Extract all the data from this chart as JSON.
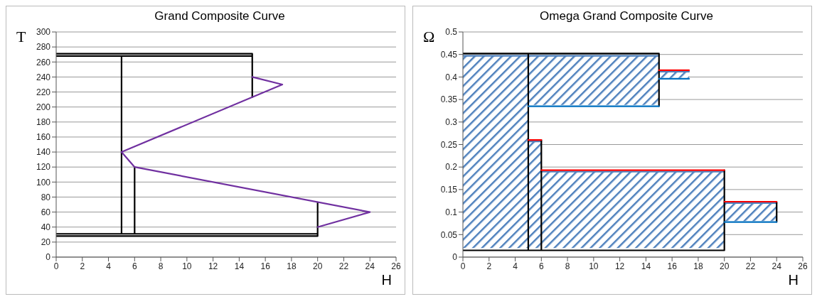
{
  "chart_data": [
    {
      "type": "line",
      "title": "Grand Composite Curve",
      "xlabel": "H",
      "ylabel": "T",
      "xlim": [
        0,
        26
      ],
      "xticks": [
        0,
        2,
        4,
        6,
        8,
        10,
        12,
        14,
        16,
        18,
        20,
        22,
        24,
        26
      ],
      "ylim": [
        0,
        300
      ],
      "yticks": [
        0,
        20,
        40,
        60,
        80,
        100,
        120,
        140,
        160,
        180,
        200,
        220,
        240,
        260,
        280,
        300
      ],
      "grid": "y",
      "series": [
        {
          "color": "#000000",
          "x": [
            0,
            15,
            15,
            null,
            0,
            15,
            null,
            5,
            5,
            null,
            6,
            6,
            null,
            20,
            20,
            null,
            0,
            20,
            20,
            0
          ],
          "values": [
            271,
            271,
            213,
            null,
            268,
            268,
            null,
            268,
            31,
            null,
            120,
            31,
            null,
            73,
            31,
            null,
            31,
            31,
            28,
            28
          ]
        },
        {
          "color": "#7030a0",
          "x": [
            15,
            17.3,
            5,
            6,
            24,
            20
          ],
          "values": [
            240,
            230,
            140,
            120,
            60,
            40
          ]
        }
      ]
    },
    {
      "type": "line",
      "title": "Omega Grand Composite Curve",
      "xlabel": "H",
      "ylabel": "Ω",
      "xlim": [
        0,
        26
      ],
      "xticks": [
        0,
        2,
        4,
        6,
        8,
        10,
        12,
        14,
        16,
        18,
        20,
        22,
        24,
        26
      ],
      "ylim": [
        0,
        0.5
      ],
      "yticks": [
        0,
        0.05,
        0.1,
        0.15,
        0.2,
        0.25,
        0.3,
        0.35,
        0.4,
        0.45,
        0.5
      ],
      "grid": "y",
      "series": [
        {
          "color": "#4f81bd",
          "x": [
            0,
            5,
            5,
            15
          ],
          "lower": [
            0.02,
            0.02,
            0.338,
            0.338
          ],
          "upper": [
            0.447,
            0.447,
            0.447,
            0.447
          ],
          "values": [
            0.447,
            0.447,
            0.447,
            0.447
          ]
        },
        {
          "color": "#4f81bd",
          "x": [
            15,
            17.3
          ],
          "lower": [
            0.398,
            0.398
          ],
          "upper": [
            0.412,
            0.412
          ],
          "values": [
            0.412,
            0.412
          ]
        },
        {
          "color": "#4f81bd",
          "x": [
            5,
            6
          ],
          "lower": [
            0.02,
            0.02
          ],
          "upper": [
            0.257,
            0.257
          ],
          "values": [
            0.257,
            0.257
          ]
        },
        {
          "color": "#4f81bd",
          "x": [
            6,
            20
          ],
          "lower": [
            0.02,
            0.02
          ],
          "upper": [
            0.19,
            0.19
          ],
          "values": [
            0.19,
            0.19
          ]
        },
        {
          "color": "#4f81bd",
          "x": [
            20,
            24
          ],
          "lower": [
            0.08,
            0.08
          ],
          "upper": [
            0.12,
            0.12
          ],
          "values": [
            0.12,
            0.12
          ]
        },
        {
          "color": "#000000",
          "x": [
            0,
            15,
            15,
            null,
            0,
            20,
            20,
            null,
            5,
            5,
            null,
            6,
            6,
            null,
            24,
            24
          ],
          "values": [
            0.452,
            0.452,
            0.335,
            null,
            0.015,
            0.015,
            0.193,
            null,
            0.45,
            0.015,
            null,
            0.26,
            0.015,
            null,
            0.122,
            0.078
          ]
        },
        {
          "color": "#ff0000",
          "x": [
            5,
            6,
            null,
            6,
            20,
            null,
            15,
            17.3,
            null,
            20,
            24
          ],
          "values": [
            0.26,
            0.26,
            null,
            0.193,
            0.193,
            null,
            0.415,
            0.415,
            null,
            0.123,
            0.123
          ]
        },
        {
          "color": "#0070c0",
          "x": [
            5,
            15,
            null,
            15,
            17.3,
            null,
            20,
            24
          ],
          "values": [
            0.335,
            0.335,
            null,
            0.396,
            0.396,
            null,
            0.078,
            0.078
          ]
        }
      ]
    }
  ]
}
